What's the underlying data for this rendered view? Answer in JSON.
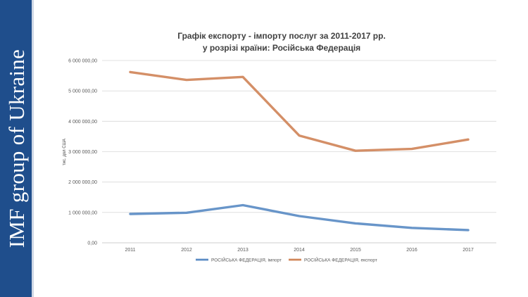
{
  "banner": {
    "text": "IMF group of Ukraine"
  },
  "chart_data": {
    "type": "line",
    "title": "Графік експорту - імпорту послуг за 2011-2017 рр.",
    "subtitle": "у розрізі країни: Російська Федерація",
    "xlabel": "",
    "ylabel": "тис. дол США",
    "categories": [
      "2011",
      "2012",
      "2013",
      "2014",
      "2015",
      "2016",
      "2017"
    ],
    "ylim": [
      0,
      6000000
    ],
    "y_ticks": [
      0,
      1000000,
      2000000,
      3000000,
      4000000,
      5000000,
      6000000
    ],
    "y_tick_labels": [
      "0,00",
      "1 000 000,00",
      "2 000 000,00",
      "3 000 000,00",
      "4 000 000,00",
      "5 000 000,00",
      "6 000 000,00"
    ],
    "grid": true,
    "legend_position": "bottom",
    "series": [
      {
        "name": "РОСІЙСЬКА ФЕДЕРАЦІЯ, імпорт",
        "color": "#5b8cc4",
        "values": [
          950000,
          990000,
          1240000,
          880000,
          640000,
          490000,
          420000
        ]
      },
      {
        "name": "РОСІЙСЬКА ФЕДЕРАЦІЯ, експорт",
        "color": "#d0865a",
        "values": [
          5620000,
          5360000,
          5460000,
          3530000,
          3030000,
          3090000,
          3400000
        ]
      }
    ]
  }
}
